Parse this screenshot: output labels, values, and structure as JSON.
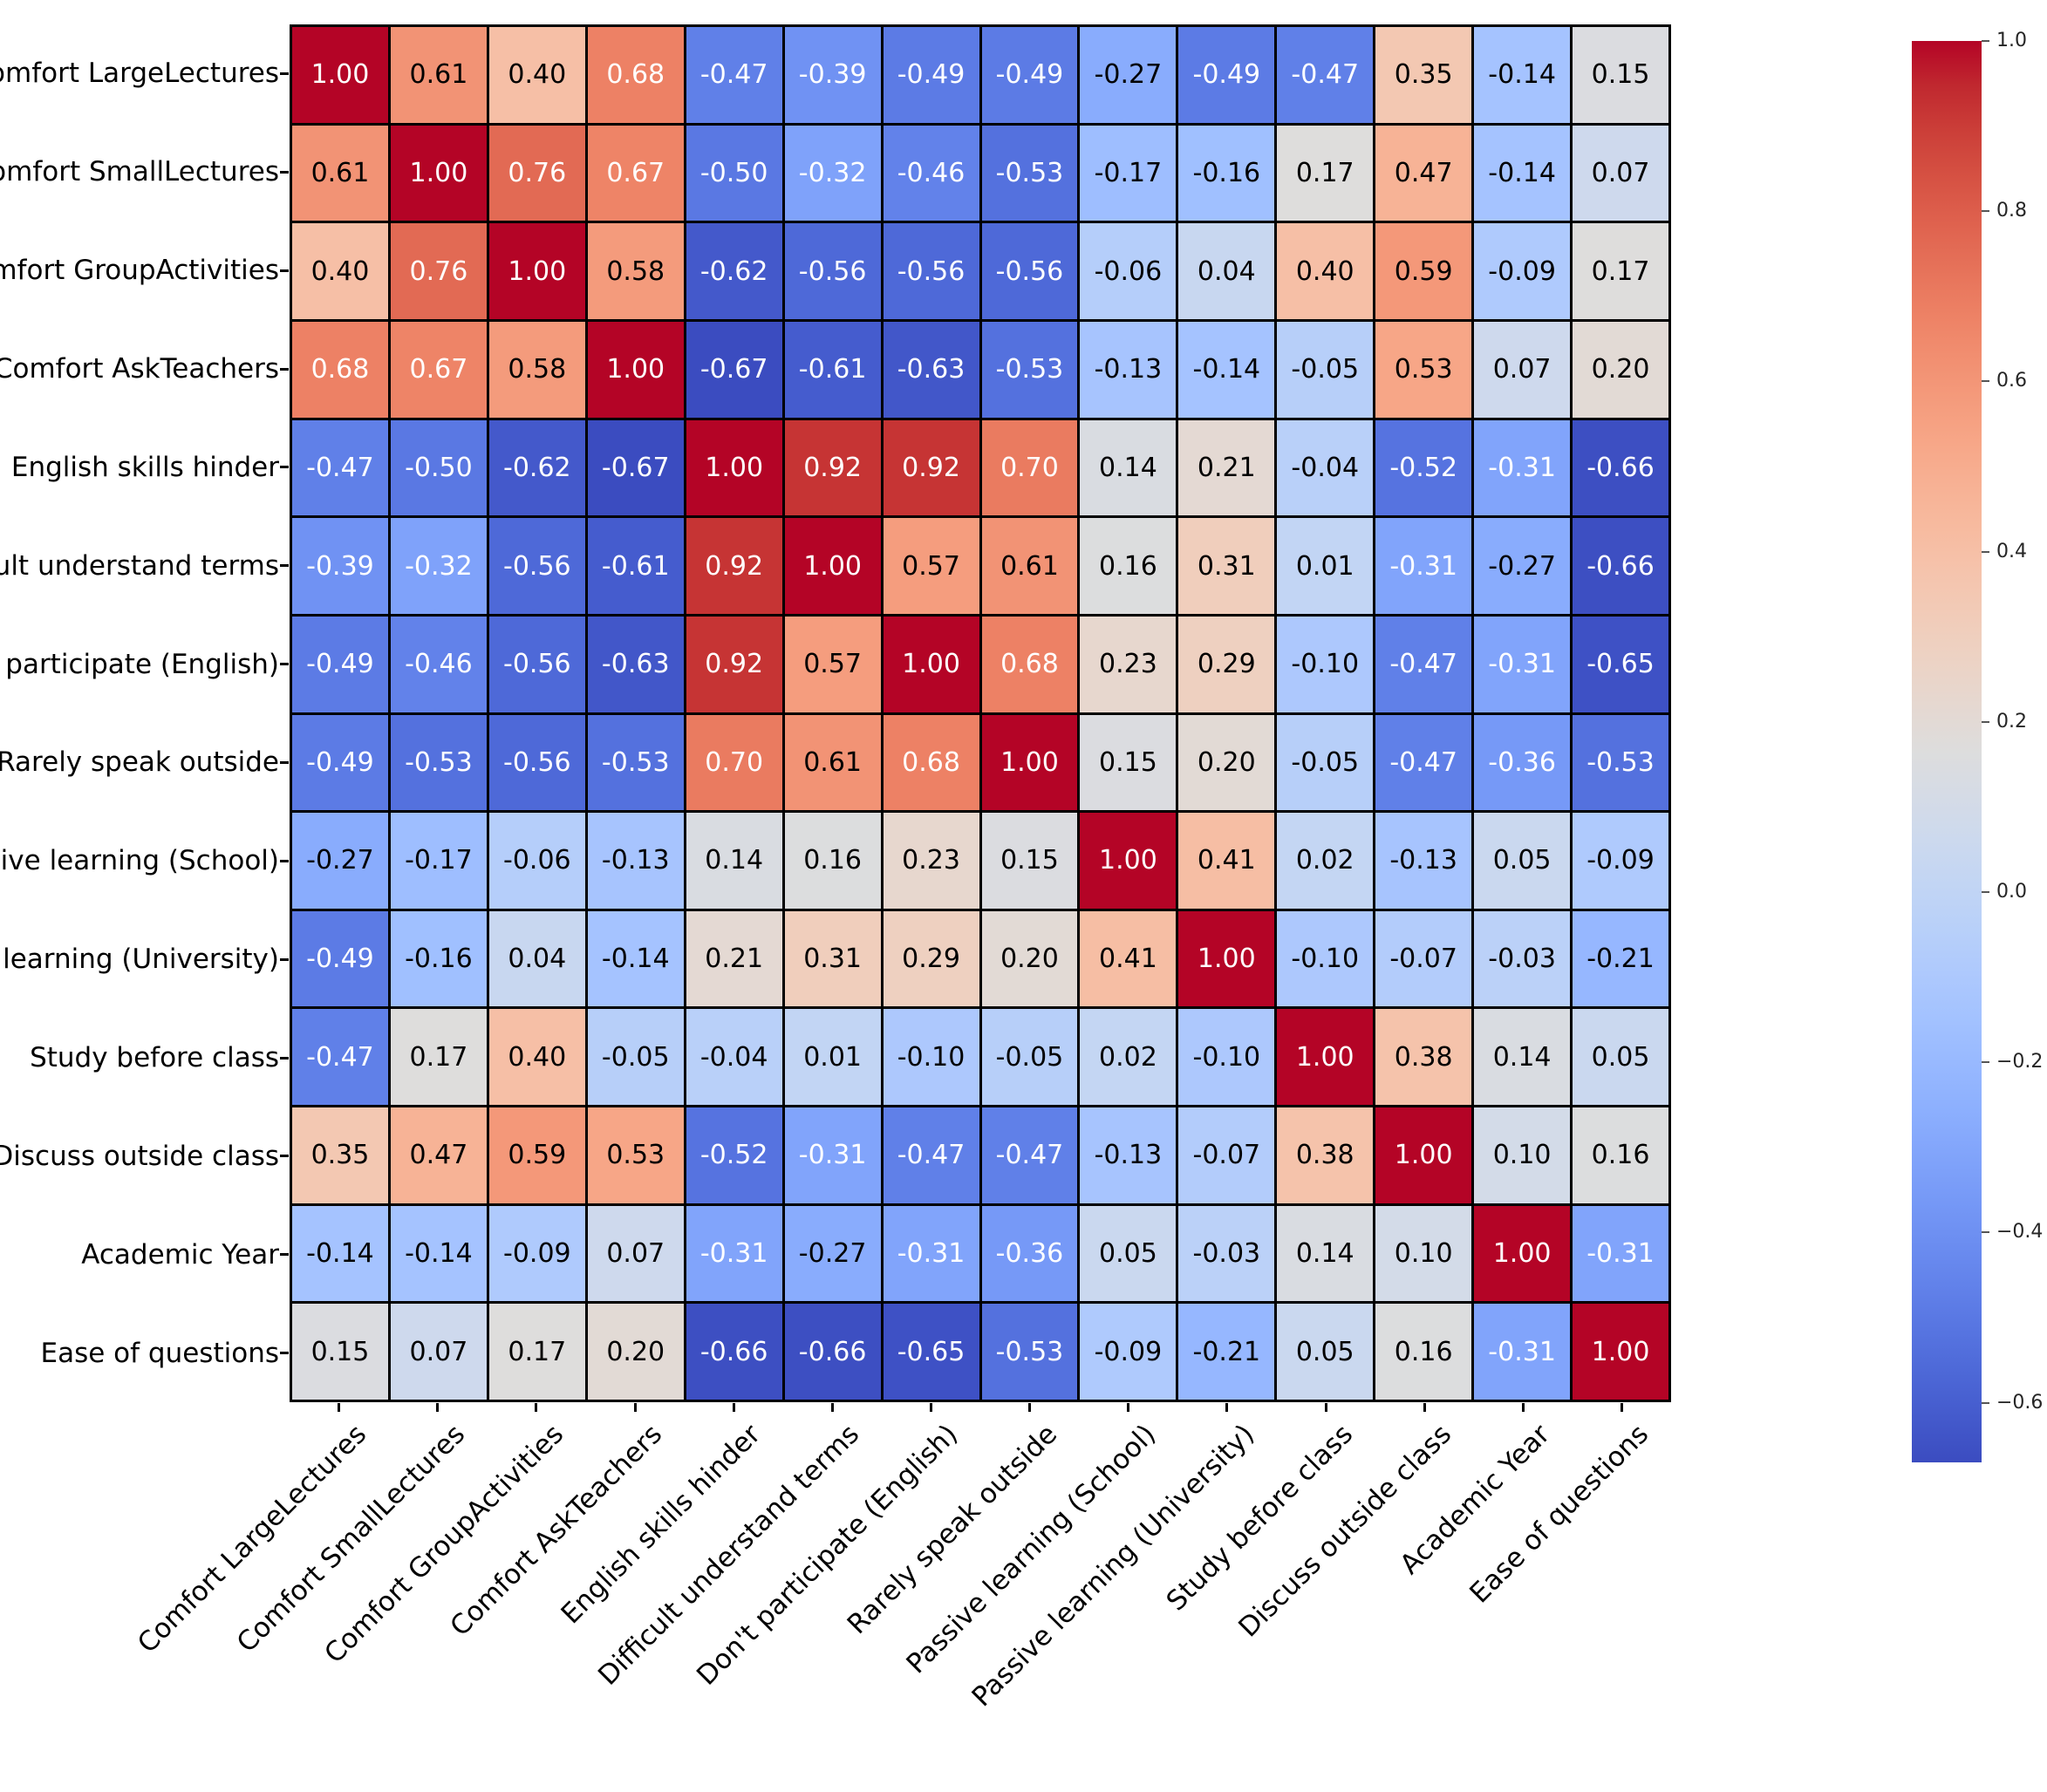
{
  "chart_data": {
    "type": "heatmap",
    "title": "",
    "labels": [
      "Comfort LargeLectures",
      "Comfort SmallLectures",
      "Comfort GroupActivities",
      "Comfort AskTeachers",
      "English skills hinder",
      "Difficult understand terms",
      "Don't participate (English)",
      "Rarely speak outside",
      "Passive learning (School)",
      "Passive learning (University)",
      "Study before class",
      "Discuss outside class",
      "Academic Year",
      "Ease of questions"
    ],
    "matrix": [
      [
        1.0,
        0.61,
        0.4,
        0.68,
        -0.47,
        -0.39,
        -0.49,
        -0.49,
        -0.27,
        -0.49,
        -0.47,
        0.35,
        -0.14,
        0.15
      ],
      [
        0.61,
        1.0,
        0.76,
        0.67,
        -0.5,
        -0.32,
        -0.46,
        -0.53,
        -0.17,
        -0.16,
        0.17,
        0.47,
        -0.14,
        0.07
      ],
      [
        0.4,
        0.76,
        1.0,
        0.58,
        -0.62,
        -0.56,
        -0.56,
        -0.56,
        -0.06,
        0.04,
        0.4,
        0.59,
        -0.09,
        0.17
      ],
      [
        0.68,
        0.67,
        0.58,
        1.0,
        -0.67,
        -0.61,
        -0.63,
        -0.53,
        -0.13,
        -0.14,
        -0.05,
        0.53,
        0.07,
        0.2
      ],
      [
        -0.47,
        -0.5,
        -0.62,
        -0.67,
        1.0,
        0.92,
        0.92,
        0.7,
        0.14,
        0.21,
        -0.04,
        -0.52,
        -0.31,
        -0.66
      ],
      [
        -0.39,
        -0.32,
        -0.56,
        -0.61,
        0.92,
        1.0,
        0.57,
        0.61,
        0.16,
        0.31,
        0.01,
        -0.31,
        -0.27,
        -0.66
      ],
      [
        -0.49,
        -0.46,
        -0.56,
        -0.63,
        0.92,
        0.57,
        1.0,
        0.68,
        0.23,
        0.29,
        -0.1,
        -0.47,
        -0.31,
        -0.65
      ],
      [
        -0.49,
        -0.53,
        -0.56,
        -0.53,
        0.7,
        0.61,
        0.68,
        1.0,
        0.15,
        0.2,
        -0.05,
        -0.47,
        -0.36,
        -0.53
      ],
      [
        -0.27,
        -0.17,
        -0.06,
        -0.13,
        0.14,
        0.16,
        0.23,
        0.15,
        1.0,
        0.41,
        0.02,
        -0.13,
        0.05,
        -0.09
      ],
      [
        -0.49,
        -0.16,
        0.04,
        -0.14,
        0.21,
        0.31,
        0.29,
        0.2,
        0.41,
        1.0,
        -0.1,
        -0.07,
        -0.03,
        -0.21
      ],
      [
        -0.47,
        0.17,
        0.4,
        -0.05,
        -0.04,
        0.01,
        -0.1,
        -0.05,
        0.02,
        -0.1,
        1.0,
        0.38,
        0.14,
        0.05
      ],
      [
        0.35,
        0.47,
        0.59,
        0.53,
        -0.52,
        -0.31,
        -0.47,
        -0.47,
        -0.13,
        -0.07,
        0.38,
        1.0,
        0.1,
        0.16
      ],
      [
        -0.14,
        -0.14,
        -0.09,
        0.07,
        -0.31,
        -0.27,
        -0.31,
        -0.36,
        0.05,
        -0.03,
        0.14,
        0.1,
        1.0,
        -0.31
      ],
      [
        0.15,
        0.07,
        0.17,
        0.2,
        -0.66,
        -0.66,
        -0.65,
        -0.53,
        -0.09,
        -0.21,
        0.05,
        0.16,
        -0.31,
        1.0
      ]
    ],
    "annotation_format": ".2f",
    "colormap": "coolwarm",
    "vmin": -0.67,
    "vmax": 1.0,
    "grid": true,
    "legend_position": "right",
    "colorbar": {
      "tick_values": [
        1.0,
        0.8,
        0.6,
        0.4,
        0.2,
        0.0,
        -0.2,
        -0.4,
        -0.6
      ],
      "tick_labels": [
        "1.0",
        "0.8",
        "0.6",
        "0.4",
        "0.2",
        "0.0",
        "−0.2",
        "−0.4",
        "−0.6"
      ]
    },
    "colors": {
      "max_color": "#b40426",
      "mid_color": "#dddddd",
      "min_color": "#3b4cc0",
      "gridline_color": "#000000",
      "annotation_dark": "#000000",
      "annotation_light": "#ffffff"
    }
  }
}
